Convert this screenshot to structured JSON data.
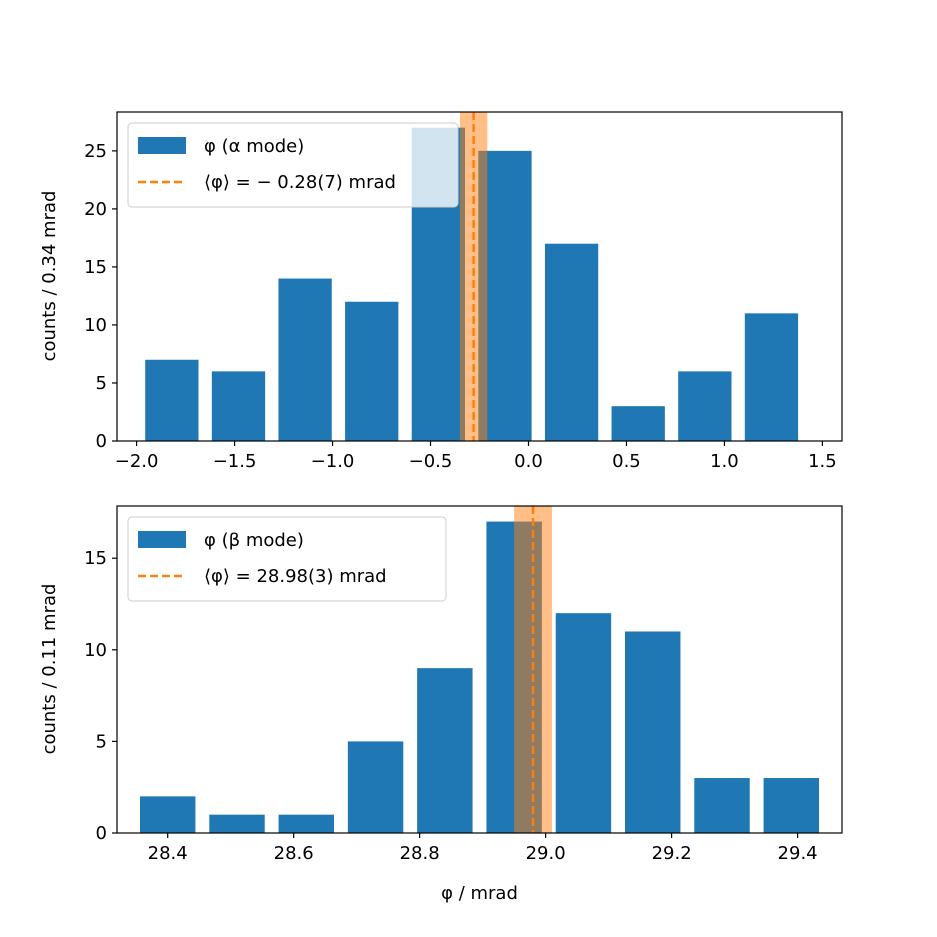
{
  "chart_data": [
    {
      "type": "bar",
      "bin_centers": [
        -1.82,
        -1.48,
        -1.14,
        -0.8,
        -0.46,
        -0.12,
        0.22,
        0.56,
        0.9,
        1.24
      ],
      "bin_width": 0.34,
      "values": [
        7,
        6,
        14,
        12,
        27,
        25,
        17,
        3,
        6,
        11
      ],
      "xlim": [
        -2.1,
        1.6
      ],
      "ylim": [
        0,
        28.35
      ],
      "xticks": [
        -2.0,
        -1.5,
        -1.0,
        -0.5,
        0.0,
        0.5,
        1.0,
        1.5
      ],
      "xtick_labels": [
        "−2.0",
        "−1.5",
        "−1.0",
        "−0.5",
        "0.0",
        "0.5",
        "1.0",
        "1.5"
      ],
      "yticks": [
        0,
        5,
        10,
        15,
        20,
        25
      ],
      "ytick_labels": [
        "0",
        "5",
        "10",
        "15",
        "20",
        "25"
      ],
      "xlabel": "",
      "ylabel": "counts / 0.34 mrad",
      "bar_color": "#1f77b4",
      "mean": -0.28,
      "mean_uncertainty": 0.07,
      "mean_color": "#ff7f0e",
      "legend_placement": "upper-left",
      "legend": {
        "bars_label": "φ (α mode)",
        "mean_label": "⟨φ⟩ = − 0.28(7) mrad"
      }
    },
    {
      "type": "bar",
      "bin_centers": [
        28.4,
        28.51,
        28.62,
        28.73,
        28.84,
        28.95,
        29.06,
        29.17,
        29.28,
        29.39
      ],
      "bin_width": 0.11,
      "values": [
        2,
        1,
        1,
        5,
        9,
        17,
        12,
        11,
        3,
        3
      ],
      "xlim": [
        28.3195,
        29.4705
      ],
      "ylim": [
        0,
        17.85
      ],
      "xticks": [
        28.4,
        28.6,
        28.8,
        29.0,
        29.2,
        29.4
      ],
      "xtick_labels": [
        "28.4",
        "28.6",
        "28.8",
        "29.0",
        "29.2",
        "29.4"
      ],
      "yticks": [
        0,
        5,
        10,
        15
      ],
      "ytick_labels": [
        "0",
        "5",
        "10",
        "15"
      ],
      "xlabel": "φ / mrad",
      "ylabel": "counts / 0.11 mrad",
      "bar_color": "#1f77b4",
      "mean": 28.98,
      "mean_uncertainty": 0.03,
      "mean_color": "#ff7f0e",
      "legend_placement": "upper-left",
      "legend": {
        "bars_label": "φ (β mode)",
        "mean_label": "⟨φ⟩ = 28.98(3) mrad"
      }
    }
  ]
}
